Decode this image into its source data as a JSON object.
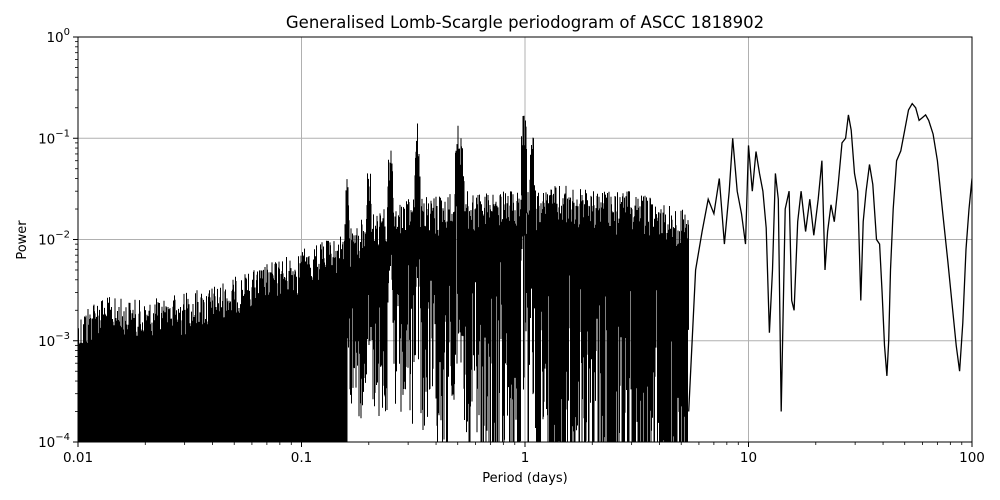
{
  "chart_data": {
    "type": "line",
    "title": "Generalised Lomb-Scargle periodogram of ASCC 1818902",
    "xlabel": "Period (days)",
    "ylabel": "Power",
    "xscale": "log",
    "yscale": "log",
    "xlim": [
      0.01,
      100
    ],
    "ylim": [
      0.0001,
      1
    ],
    "grid": true,
    "legend": null,
    "line_color": "#000000",
    "grid_color": "#b0b0b0",
    "x_ticks": [
      {
        "value": 0.01,
        "label": "0.01"
      },
      {
        "value": 0.1,
        "label": "0.1"
      },
      {
        "value": 1,
        "label": "1"
      },
      {
        "value": 10,
        "label": "10"
      },
      {
        "value": 100,
        "label": "100"
      }
    ],
    "y_ticks": [
      {
        "value": 1,
        "base": "10",
        "exp": "0"
      },
      {
        "value": 0.1,
        "base": "10",
        "exp": "−1"
      },
      {
        "value": 0.01,
        "base": "10",
        "exp": "−2"
      },
      {
        "value": 0.001,
        "base": "10",
        "exp": "−3"
      },
      {
        "value": 0.0001,
        "base": "10",
        "exp": "−4"
      }
    ],
    "noise_envelope": {
      "period": [
        0.01,
        0.012,
        0.02,
        0.04,
        0.06,
        0.1,
        0.15,
        0.2,
        0.3,
        0.5,
        0.8,
        1.0,
        1.5,
        2.0,
        3.0,
        4.0,
        5.0
      ],
      "upper_power": [
        0.0018,
        0.0028,
        0.0025,
        0.0035,
        0.005,
        0.008,
        0.011,
        0.018,
        0.025,
        0.03,
        0.03,
        0.03,
        0.035,
        0.03,
        0.03,
        0.025,
        0.02
      ]
    },
    "notable_peaks": [
      {
        "period": 0.16,
        "power": 0.045
      },
      {
        "period": 0.2,
        "power": 0.07
      },
      {
        "period": 0.25,
        "power": 0.1
      },
      {
        "period": 0.33,
        "power": 0.15
      },
      {
        "period": 0.5,
        "power": 0.18
      },
      {
        "period": 0.52,
        "power": 0.12
      },
      {
        "period": 0.99,
        "power": 0.21
      },
      {
        "period": 1.08,
        "power": 0.13
      }
    ],
    "long_period_curve": {
      "period": [
        5.4,
        5.8,
        6.2,
        6.6,
        7.0,
        7.4,
        7.8,
        8.2,
        8.5,
        8.9,
        9.3,
        9.7,
        10.0,
        10.4,
        10.8,
        11.2,
        11.6,
        12.0,
        12.4,
        12.8,
        13.2,
        13.6,
        14.0,
        14.6,
        15.2,
        15.6,
        16.0,
        16.6,
        17.2,
        18.0,
        18.8,
        19.6,
        20.5,
        21.3,
        22.0,
        22.6,
        23.4,
        24.2,
        25.2,
        26.2,
        27.2,
        28.0,
        28.8,
        29.8,
        30.8,
        31.8,
        32.6,
        33.6,
        34.8,
        36.0,
        37.4,
        38.6,
        39.6,
        40.6,
        41.6,
        42.4,
        43.2,
        44.4,
        46.0,
        48.0,
        50.0,
        52.0,
        54.0,
        56.0,
        58.0,
        60.0,
        62.0,
        64.0,
        67.0,
        70.0,
        74.0,
        78.0,
        82.0,
        85.0,
        88.0,
        91.0,
        94.0,
        97.0,
        100.0
      ],
      "power": [
        0.0002,
        0.005,
        0.012,
        0.025,
        0.018,
        0.04,
        0.009,
        0.03,
        0.1,
        0.03,
        0.018,
        0.009,
        0.085,
        0.03,
        0.074,
        0.045,
        0.03,
        0.013,
        0.0012,
        0.005,
        0.045,
        0.025,
        0.0002,
        0.02,
        0.03,
        0.0025,
        0.002,
        0.015,
        0.03,
        0.012,
        0.025,
        0.011,
        0.025,
        0.06,
        0.005,
        0.012,
        0.022,
        0.015,
        0.035,
        0.09,
        0.1,
        0.17,
        0.12,
        0.045,
        0.03,
        0.0025,
        0.015,
        0.03,
        0.055,
        0.035,
        0.01,
        0.009,
        0.003,
        0.0009,
        0.00045,
        0.001,
        0.005,
        0.02,
        0.06,
        0.075,
        0.12,
        0.19,
        0.22,
        0.2,
        0.15,
        0.16,
        0.17,
        0.15,
        0.11,
        0.06,
        0.018,
        0.006,
        0.002,
        0.0009,
        0.0005,
        0.0015,
        0.008,
        0.02,
        0.04
      ]
    }
  }
}
